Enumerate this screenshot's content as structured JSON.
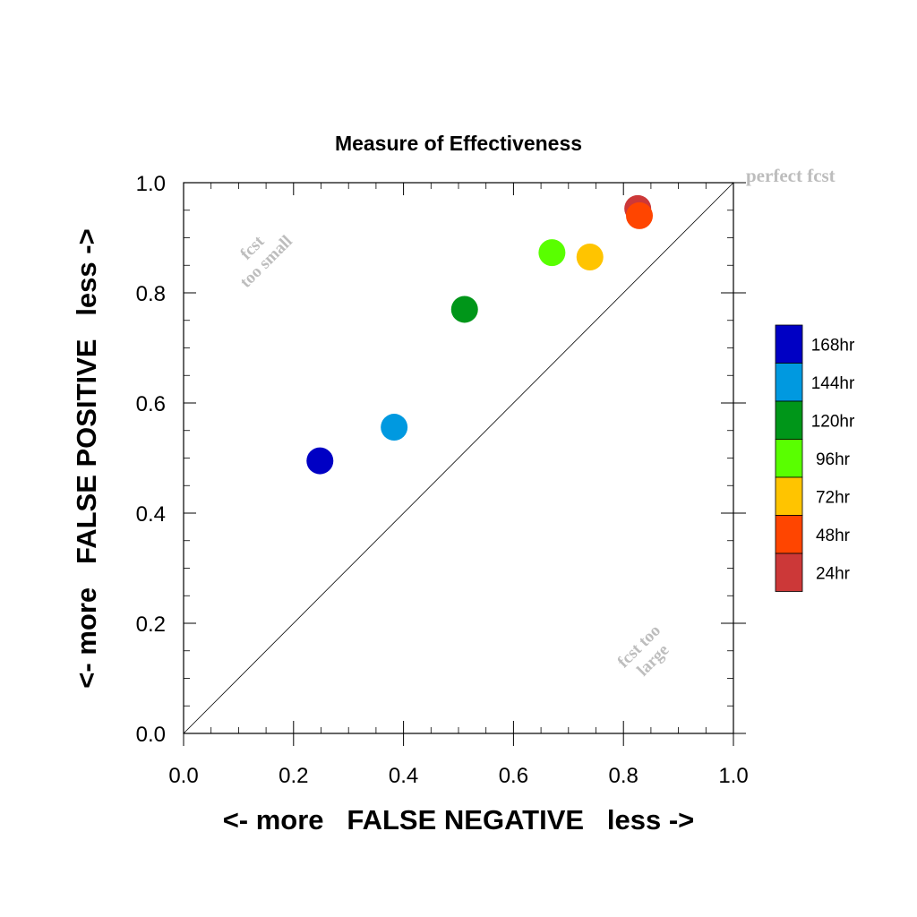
{
  "chart_data": {
    "type": "scatter",
    "title": "Measure of Effectiveness",
    "xlabel": "<- more   FALSE NEGATIVE   less ->",
    "ylabel": "<- more   FALSE POSITIVE   less ->",
    "xlim": [
      0.0,
      1.0
    ],
    "ylim": [
      0.0,
      1.0
    ],
    "xticks": [
      "0.0",
      "0.2",
      "0.4",
      "0.6",
      "0.8",
      "1.0"
    ],
    "yticks": [
      "0.0",
      "0.2",
      "0.4",
      "0.6",
      "0.8",
      "1.0"
    ],
    "grid": false,
    "diagonal_line": true,
    "annotations": {
      "perfect": "perfect fcst",
      "too_small_line1": "fcst",
      "too_small_line2": "too small",
      "too_large_line1": "fcst too",
      "too_large_line2": "large"
    },
    "legend_position": "right",
    "series": [
      {
        "name": "168hr",
        "color": "#0000c4",
        "x": 0.248,
        "y": 0.495
      },
      {
        "name": "144hr",
        "color": "#0099e0",
        "x": 0.383,
        "y": 0.556
      },
      {
        "name": "120hr",
        "color": "#009619",
        "x": 0.511,
        "y": 0.77
      },
      {
        "name": "96hr",
        "color": "#59ff00",
        "x": 0.67,
        "y": 0.873
      },
      {
        "name": "72hr",
        "color": "#ffc400",
        "x": 0.739,
        "y": 0.865
      },
      {
        "name": "48hr",
        "color": "#ff4500",
        "x": 0.829,
        "y": 0.94
      },
      {
        "name": "24hr",
        "color": "#cc3838",
        "x": 0.826,
        "y": 0.953
      }
    ],
    "draw_order": [
      "168hr",
      "144hr",
      "120hr",
      "96hr",
      "72hr",
      "24hr",
      "48hr"
    ]
  }
}
